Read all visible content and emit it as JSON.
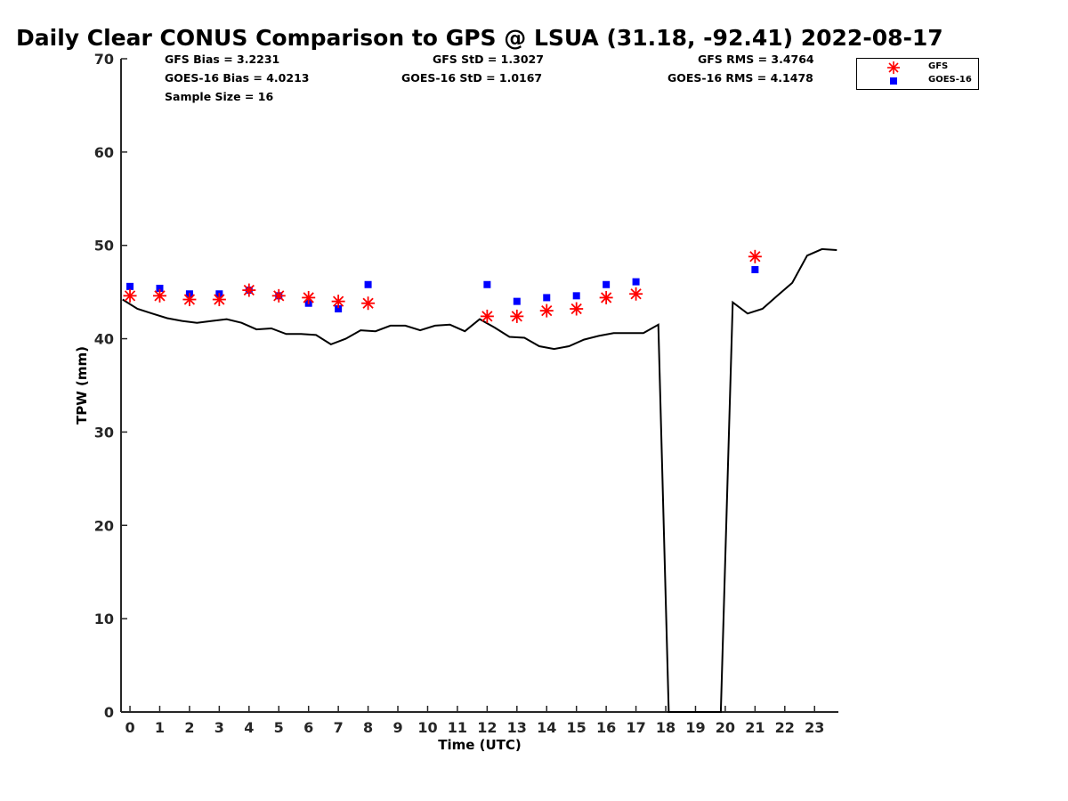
{
  "title": "Daily Clear CONUS Comparison to GPS @ LSUA (31.18, -92.41) 2022-08-17",
  "stats": {
    "gfs_bias": "GFS Bias = 3.2231",
    "goes_bias": "GOES-16 Bias = 4.0213",
    "sample_size": "Sample Size = 16",
    "gfs_std": "GFS StD = 1.3027",
    "goes_std": "GOES-16 StD = 1.0167",
    "gfs_rms": "GFS RMS = 3.4764",
    "goes_rms": "GOES-16 RMS = 4.1478"
  },
  "legend": {
    "gfs_label": "GFS",
    "goes_label": "GOES-16"
  },
  "colors": {
    "gfs": "#ff0000",
    "goes": "#0000ff",
    "gps_line": "#000000"
  },
  "chart_data": {
    "type": "line",
    "title": "Daily Clear CONUS Comparison to GPS @ LSUA (31.18, -92.41) 2022-08-17",
    "xlabel": "Time (UTC)",
    "ylabel": "TPW (mm)",
    "xlim": [
      -0.3,
      23.8
    ],
    "ylim": [
      0,
      70
    ],
    "xticks": [
      "0",
      "1",
      "2",
      "3",
      "4",
      "5",
      "6",
      "7",
      "8",
      "9",
      "10",
      "11",
      "12",
      "13",
      "14",
      "15",
      "16",
      "17",
      "18",
      "19",
      "20",
      "21",
      "22",
      "23"
    ],
    "yticks": [
      "0",
      "10",
      "20",
      "30",
      "40",
      "50",
      "60",
      "70"
    ],
    "legend_position": "top-right outside",
    "series": [
      {
        "marker": "line",
        "x": [
          -0.25,
          0.25,
          0.75,
          1.25,
          1.75,
          2.25,
          2.75,
          3.25,
          3.75,
          4.25,
          4.75,
          5.25,
          5.75,
          6.25,
          6.75,
          7.25,
          7.75,
          8.25,
          8.75,
          9.25,
          9.75,
          10.25,
          10.75,
          11.25,
          11.75,
          12.25,
          12.75,
          13.25,
          13.75,
          14.25,
          14.75,
          15.25,
          15.75,
          16.25,
          16.75,
          17.25,
          17.75,
          18.1,
          19.85,
          20.25,
          20.75,
          21.25,
          21.75,
          22.25,
          22.75,
          23.25,
          23.75
        ],
        "y": [
          44.2,
          43.2,
          42.7,
          42.2,
          41.9,
          41.7,
          41.9,
          42.1,
          41.7,
          41.0,
          41.1,
          40.5,
          40.5,
          40.4,
          39.4,
          40.0,
          40.9,
          40.8,
          41.4,
          41.4,
          40.9,
          41.4,
          41.5,
          40.8,
          42.1,
          41.2,
          40.2,
          40.1,
          39.2,
          38.9,
          39.2,
          39.9,
          40.3,
          40.6,
          40.6,
          40.6,
          41.5,
          0,
          0,
          43.9,
          42.7,
          43.2,
          44.6,
          46.0,
          48.9,
          49.6,
          49.5
        ]
      },
      {
        "name": "GFS",
        "marker": "asterisk",
        "x": [
          0,
          1,
          2,
          3,
          4,
          5,
          6,
          7,
          8,
          12,
          13,
          14,
          15,
          16,
          17,
          21
        ],
        "y": [
          44.6,
          44.6,
          44.2,
          44.2,
          45.2,
          44.6,
          44.4,
          44.0,
          43.8,
          42.4,
          42.4,
          43.0,
          43.2,
          44.4,
          44.8,
          48.8
        ]
      },
      {
        "name": "GOES-16",
        "marker": "square",
        "x": [
          0,
          1,
          2,
          3,
          4,
          5,
          6,
          7,
          8,
          12,
          13,
          14,
          15,
          16,
          17,
          21
        ],
        "y": [
          45.6,
          45.4,
          44.8,
          44.8,
          45.2,
          44.6,
          43.8,
          43.2,
          45.8,
          45.8,
          44.0,
          44.4,
          44.6,
          45.8,
          46.1,
          47.4
        ]
      }
    ]
  }
}
